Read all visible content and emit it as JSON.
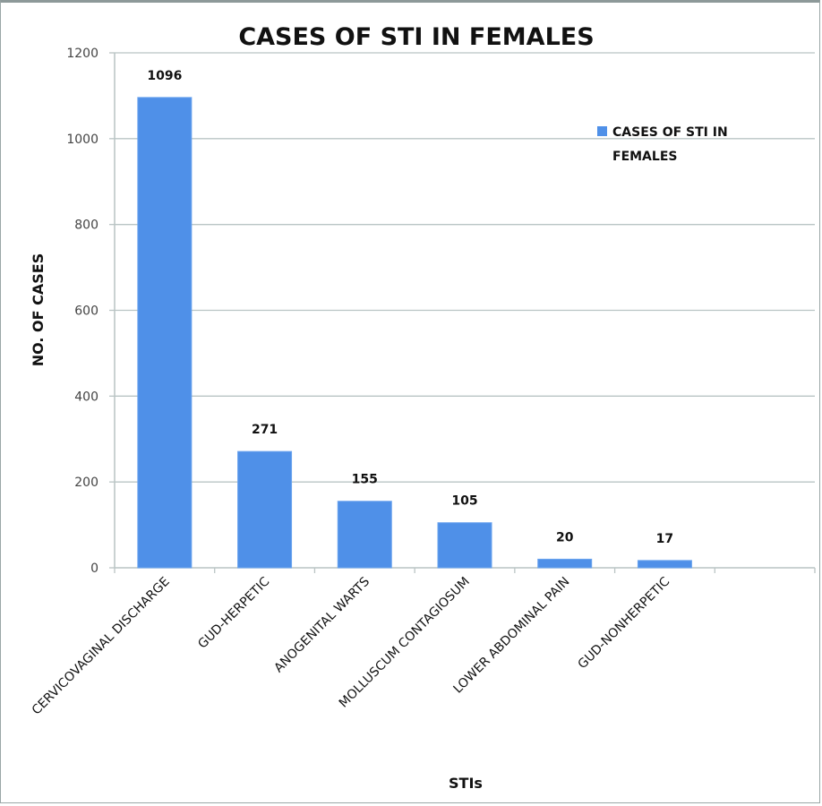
{
  "chart_data": {
    "type": "bar",
    "title": "CASES OF STI IN FEMALES",
    "xlabel": "STIs",
    "ylabel": "NO. OF CASES",
    "categories": [
      "CERVICOVAGINAL DISCHARGE",
      "GUD-HERPETIC",
      "ANOGENITAL WARTS",
      "MOLLUSCUM CONTAGIOSUM",
      "LOWER ABDOMINAL PAIN",
      "GUD-NONHERPETIC",
      ""
    ],
    "series": [
      {
        "name": "CASES OF STI IN FEMALES",
        "values": [
          1096,
          271,
          155,
          105,
          20,
          17,
          null
        ],
        "color": "#4f90e8"
      }
    ],
    "data_labels": [
      "1096",
      "271",
      "155",
      "105",
      "20",
      "17",
      ""
    ],
    "ylim": [
      0,
      1200
    ],
    "yticks": [
      0,
      200,
      400,
      600,
      800,
      1000,
      1200
    ],
    "grid": true,
    "legend": {
      "position": "top-right",
      "lines": [
        "CASES OF STI IN",
        "FEMALES"
      ]
    }
  }
}
